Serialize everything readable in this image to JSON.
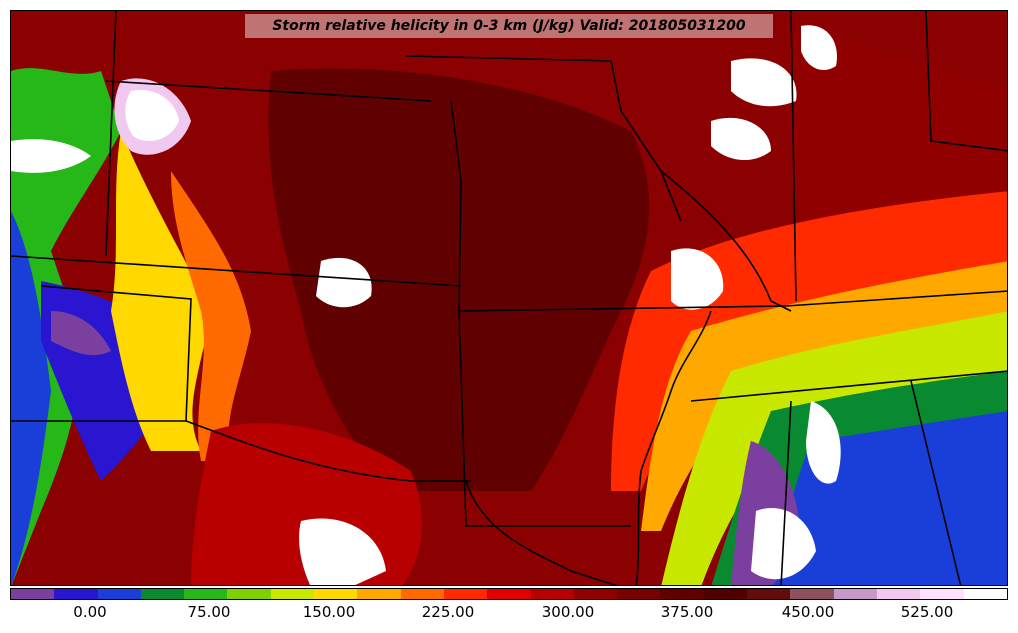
{
  "title": "Storm relative helicity in 0-3 km (J/kg) Valid: 201805031200",
  "colorbar": {
    "colors": [
      "#7b3fa0",
      "#2a16d0",
      "#1a3fd8",
      "#0a8a30",
      "#26b818",
      "#7fd000",
      "#c8e800",
      "#ffd800",
      "#ffa800",
      "#ff6a00",
      "#ff2a00",
      "#e00000",
      "#b80000",
      "#900000",
      "#780000",
      "#600000",
      "#500000",
      "#640c0c",
      "#905060",
      "#c898c8",
      "#f0c8f0",
      "#ffe0ff",
      "#ffffff"
    ],
    "tick_labels": [
      "0.00",
      "75.00",
      "150.00",
      "225.00",
      "300.00",
      "375.00",
      "450.00",
      "525.00"
    ]
  },
  "map": {
    "region": "central-us-plains",
    "palette": {
      "maroon": "#600000",
      "dark_red": "#900000",
      "red": "#e00000",
      "orange": "#ff6a00",
      "yellow": "#ffd800",
      "lime": "#c8e800",
      "green": "#26b818",
      "dark_green": "#0a8a30",
      "blue": "#1a3fd8",
      "purple": "#7b3fa0",
      "pink": "#f0c8f0",
      "white": "#ffffff",
      "border": "#000000"
    }
  }
}
